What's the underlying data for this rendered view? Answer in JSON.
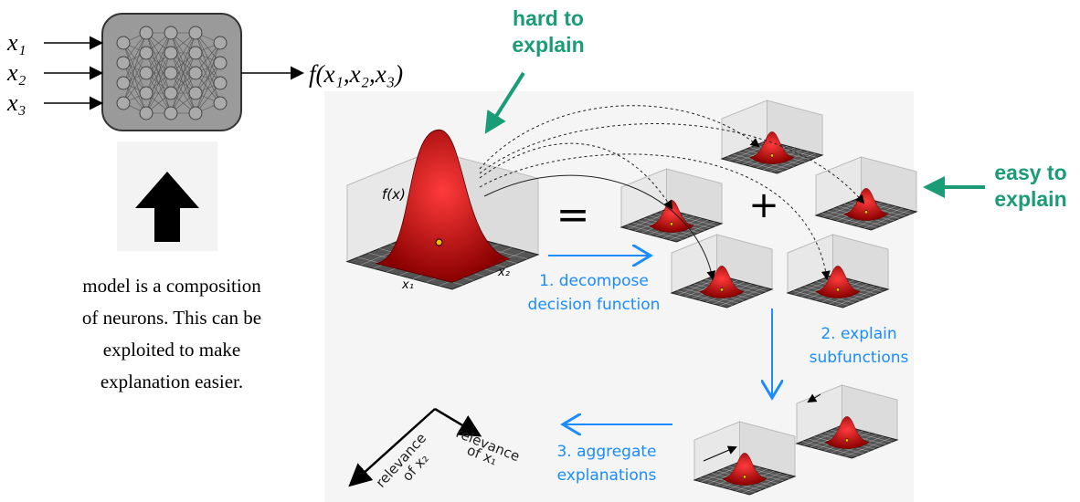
{
  "network": {
    "inputs": [
      "x₁",
      "x₂",
      "x₃"
    ],
    "output": "f(x₁,x₂,x₃)"
  },
  "caption": [
    "model is a composition",
    "of neurons. This can be",
    "exploited to make",
    "explanation easier."
  ],
  "hard_label": [
    "hard to",
    "explain"
  ],
  "easy_label": [
    "easy to",
    "explain"
  ],
  "main_plot": {
    "z_label": "f(x)",
    "x1_label": "x₁",
    "x2_label": "x₂"
  },
  "operators": {
    "equals": "=",
    "plus": "+"
  },
  "steps": {
    "decompose": [
      "1. decompose",
      "decision function"
    ],
    "explain": [
      "2. explain",
      "subfunctions"
    ],
    "aggregate": [
      "3. aggregate",
      "explanations"
    ]
  },
  "relevance": {
    "x1": [
      "relevance",
      "of x₁"
    ],
    "x2": [
      "relevance",
      "of x₂"
    ]
  }
}
